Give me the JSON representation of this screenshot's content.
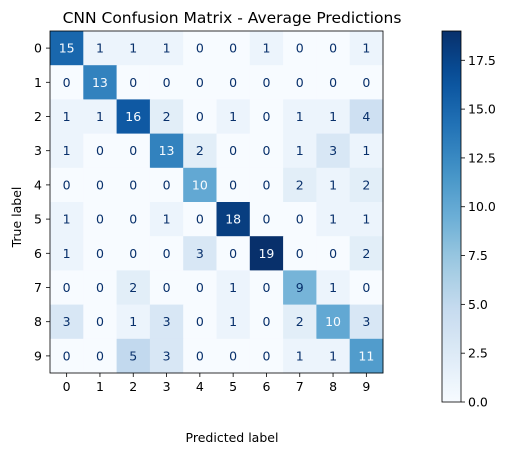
{
  "chart_data": {
    "type": "heatmap",
    "title": "CNN Confusion Matrix - Average Predictions",
    "xlabel": "Predicted label",
    "ylabel": "True label",
    "x_categories": [
      "0",
      "1",
      "2",
      "3",
      "4",
      "5",
      "6",
      "7",
      "8",
      "9"
    ],
    "y_categories": [
      "0",
      "1",
      "2",
      "3",
      "4",
      "5",
      "6",
      "7",
      "8",
      "9"
    ],
    "matrix": [
      [
        15,
        1,
        1,
        1,
        0,
        0,
        1,
        0,
        0,
        1
      ],
      [
        0,
        13,
        0,
        0,
        0,
        0,
        0,
        0,
        0,
        0
      ],
      [
        1,
        1,
        16,
        2,
        0,
        1,
        0,
        1,
        1,
        4
      ],
      [
        1,
        0,
        0,
        13,
        2,
        0,
        0,
        1,
        3,
        1
      ],
      [
        0,
        0,
        0,
        0,
        10,
        0,
        0,
        2,
        1,
        2
      ],
      [
        1,
        0,
        0,
        1,
        0,
        18,
        0,
        0,
        1,
        1
      ],
      [
        1,
        0,
        0,
        0,
        3,
        0,
        19,
        0,
        0,
        2
      ],
      [
        0,
        0,
        2,
        0,
        0,
        1,
        0,
        9,
        1,
        0
      ],
      [
        3,
        0,
        1,
        3,
        0,
        1,
        0,
        2,
        10,
        3
      ],
      [
        0,
        0,
        5,
        3,
        0,
        0,
        0,
        1,
        1,
        11
      ]
    ],
    "colormap": "Blues",
    "color_range": [
      0,
      19
    ],
    "colorbar_ticks": [
      "0.0",
      "2.5",
      "5.0",
      "7.5",
      "10.0",
      "12.5",
      "15.0",
      "17.5"
    ],
    "colorbar_tick_values": [
      0,
      2.5,
      5,
      7.5,
      10,
      12.5,
      15,
      17.5
    ],
    "colors": {
      "low": "#f7fbff",
      "high": "#08306b",
      "text_dark": "#08306b",
      "text_light": "#f7fbff"
    }
  }
}
